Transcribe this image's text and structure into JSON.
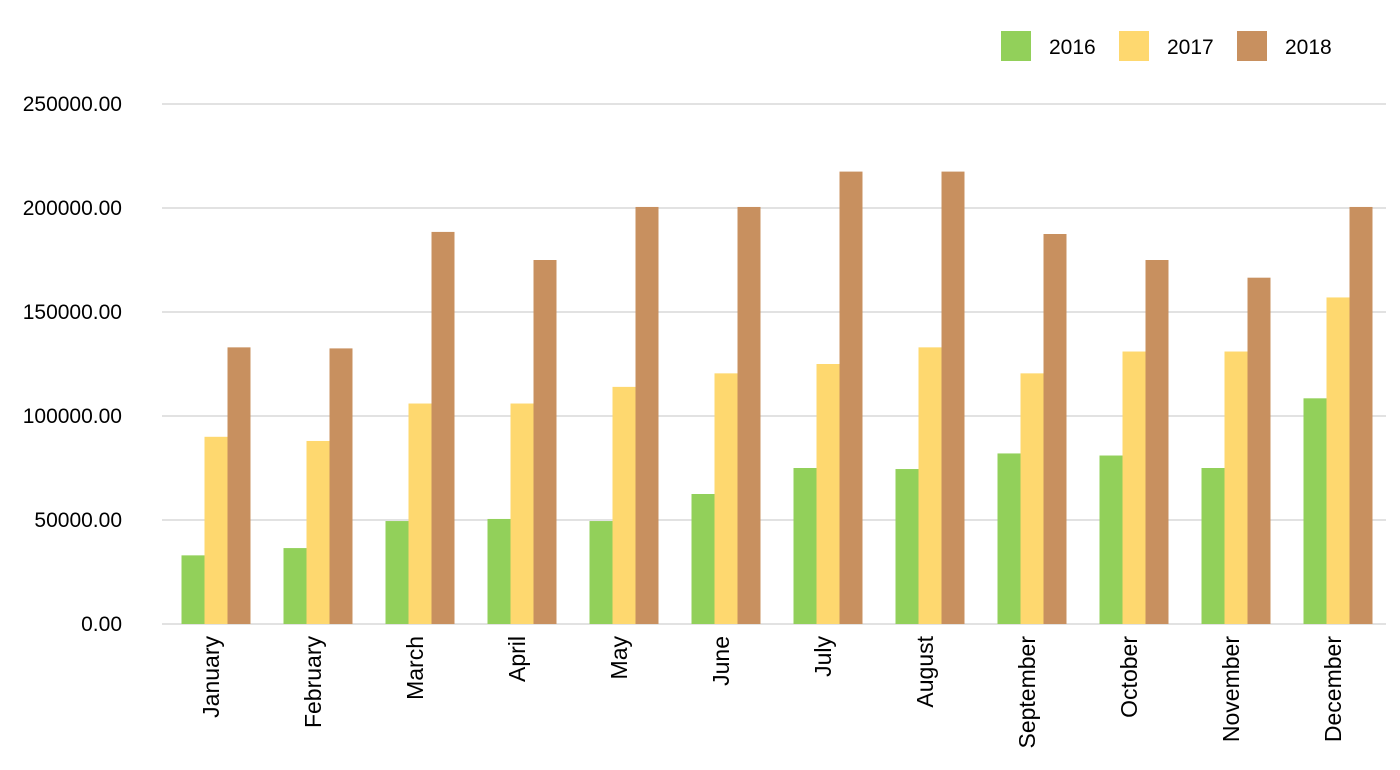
{
  "chart_data": {
    "type": "bar",
    "title": "",
    "xlabel": "",
    "ylabel": "",
    "categories": [
      "January",
      "February",
      "March",
      "April",
      "May",
      "June",
      "July",
      "August",
      "September",
      "October",
      "November",
      "December"
    ],
    "series": [
      {
        "name": "2016",
        "color": "#92d05a",
        "values": [
          33000,
          36500,
          49500,
          50500,
          49500,
          62500,
          75000,
          74500,
          82000,
          81000,
          75000,
          108500
        ]
      },
      {
        "name": "2017",
        "color": "#fed86f",
        "values": [
          90000,
          88000,
          106000,
          106000,
          114000,
          120500,
          125000,
          133000,
          120500,
          131000,
          131000,
          157000
        ]
      },
      {
        "name": "2018",
        "color": "#c8905f",
        "values": [
          133000,
          132500,
          188500,
          175000,
          200500,
          200500,
          217500,
          217500,
          187500,
          175000,
          166500,
          200500
        ]
      }
    ],
    "yticks": [
      "0.00",
      "50000.00",
      "100000.00",
      "150000.00",
      "200000.00",
      "250000.00"
    ],
    "ylim": [
      0,
      250000
    ],
    "grid": true,
    "legend_position": "top-right"
  }
}
